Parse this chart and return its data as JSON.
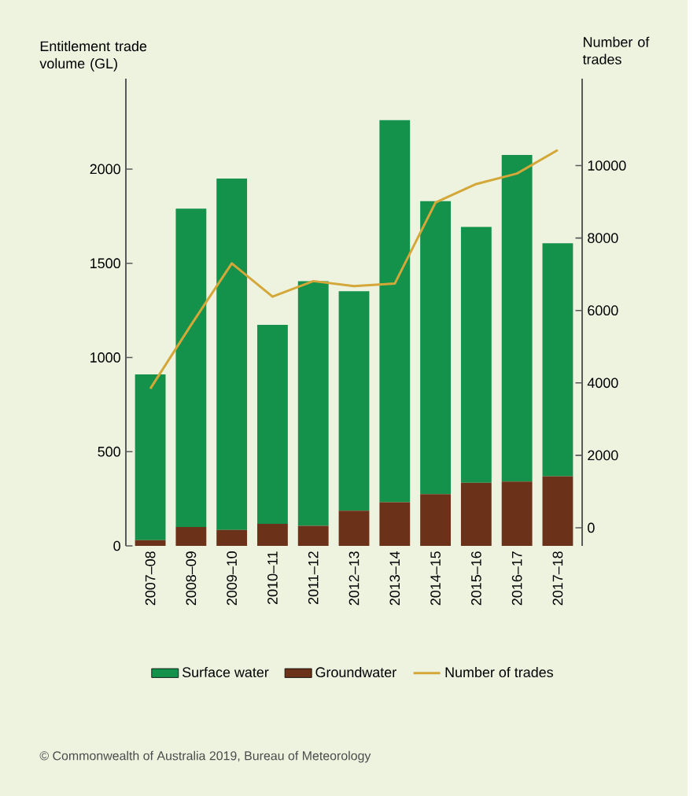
{
  "chart_data": {
    "type": "bar",
    "stacked": true,
    "legend": "bottom",
    "ylabel": "Entitlement trade volume (GL)",
    "y2label": "Number of trades",
    "categories": [
      "2007–08",
      "2008–09",
      "2009–10",
      "2010–11",
      "2011–12",
      "2012–13",
      "2013–14",
      "2014–15",
      "2015–16",
      "2016–17",
      "2017–18"
    ],
    "series": [
      {
        "name": "Groundwater",
        "color": "#6b3119",
        "values": [
          30,
          100,
          85,
          117,
          106,
          187,
          232,
          274,
          335,
          341,
          369
        ]
      },
      {
        "name": "Surface water",
        "color": "#14914b",
        "values": [
          880,
          1690,
          1865,
          1056,
          1299,
          1165,
          2028,
          1556,
          1358,
          1734,
          1237
        ]
      },
      {
        "name": "Number of trades",
        "type": "line",
        "axis": "y2",
        "color": "#d4a739",
        "values": [
          3840,
          5600,
          7300,
          6380,
          6810,
          6670,
          6740,
          8980,
          9490,
          9780,
          10430
        ]
      }
    ],
    "ylim": [
      0,
      2480
    ],
    "yticks": [
      0,
      500,
      1000,
      1500,
      2000
    ],
    "y2lim": [
      -500,
      12400
    ],
    "y2ticks": [
      0,
      2000,
      4000,
      6000,
      8000,
      10000
    ],
    "annotations": [
      "© Commonwealth of Australia 2019, Bureau of Meteorology"
    ]
  }
}
